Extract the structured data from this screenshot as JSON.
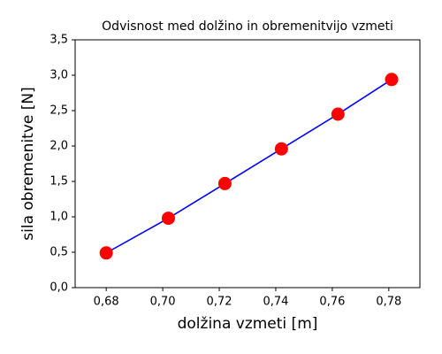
{
  "chart_data": {
    "type": "line",
    "title": "Odvisnost med dolžino in obremenitvijo vzmeti",
    "xlabel": "dolžina vzmeti [m]",
    "ylabel": "sila obremenitve [N]",
    "x": [
      0.68,
      0.702,
      0.722,
      0.742,
      0.762,
      0.781
    ],
    "series": [
      {
        "color": "#0000ff",
        "marker_color": "#ff0000",
        "values": [
          0.49,
          0.98,
          1.47,
          1.96,
          2.45,
          2.94
        ]
      }
    ],
    "xlim": [
      0.669,
      0.791
    ],
    "xticks": [
      {
        "value": 0.68,
        "label": "0,68"
      },
      {
        "value": 0.7,
        "label": "0,70"
      },
      {
        "value": 0.72,
        "label": "0,72"
      },
      {
        "value": 0.74,
        "label": "0,74"
      },
      {
        "value": 0.76,
        "label": "0,76"
      },
      {
        "value": 0.78,
        "label": "0,78"
      }
    ],
    "ylim": [
      0,
      3.5
    ],
    "yticks": [
      {
        "value": 0,
        "label": "0,0"
      },
      {
        "value": 0.5,
        "label": "0,5"
      },
      {
        "value": 1,
        "label": "1,0"
      },
      {
        "value": 1.5,
        "label": "1,5"
      },
      {
        "value": 2,
        "label": "2,0"
      },
      {
        "value": 2.5,
        "label": "2,5"
      },
      {
        "value": 3,
        "label": "3,0"
      },
      {
        "value": 3.5,
        "label": "3,5"
      }
    ],
    "grid": false
  }
}
